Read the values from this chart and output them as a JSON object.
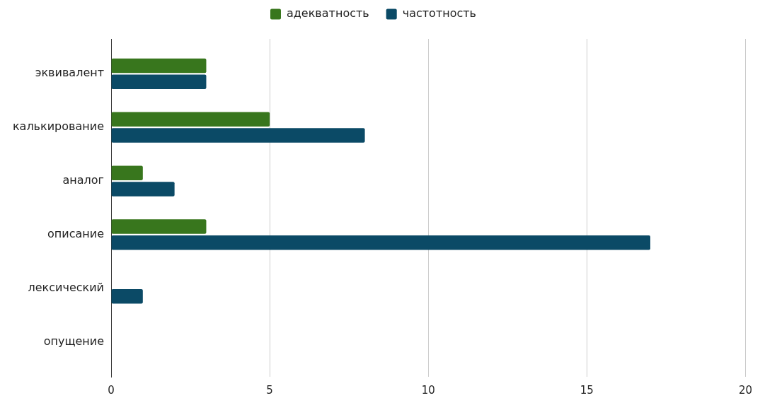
{
  "chart_data": {
    "type": "bar",
    "orientation": "horizontal",
    "categories": [
      "эквивалент",
      "калькирование",
      "аналог",
      "описание",
      "лексический",
      "опущение"
    ],
    "series": [
      {
        "name": "адекватность",
        "color": "#38761d",
        "values": [
          3,
          5,
          1,
          3,
          0,
          0
        ]
      },
      {
        "name": "частотность",
        "color": "#0b4a66",
        "values": [
          3,
          8,
          2,
          17,
          1,
          0
        ]
      }
    ],
    "xlim": [
      0,
      20
    ],
    "xticks": [
      0,
      5,
      10,
      15,
      20
    ],
    "grid": "x",
    "legend": "top"
  }
}
